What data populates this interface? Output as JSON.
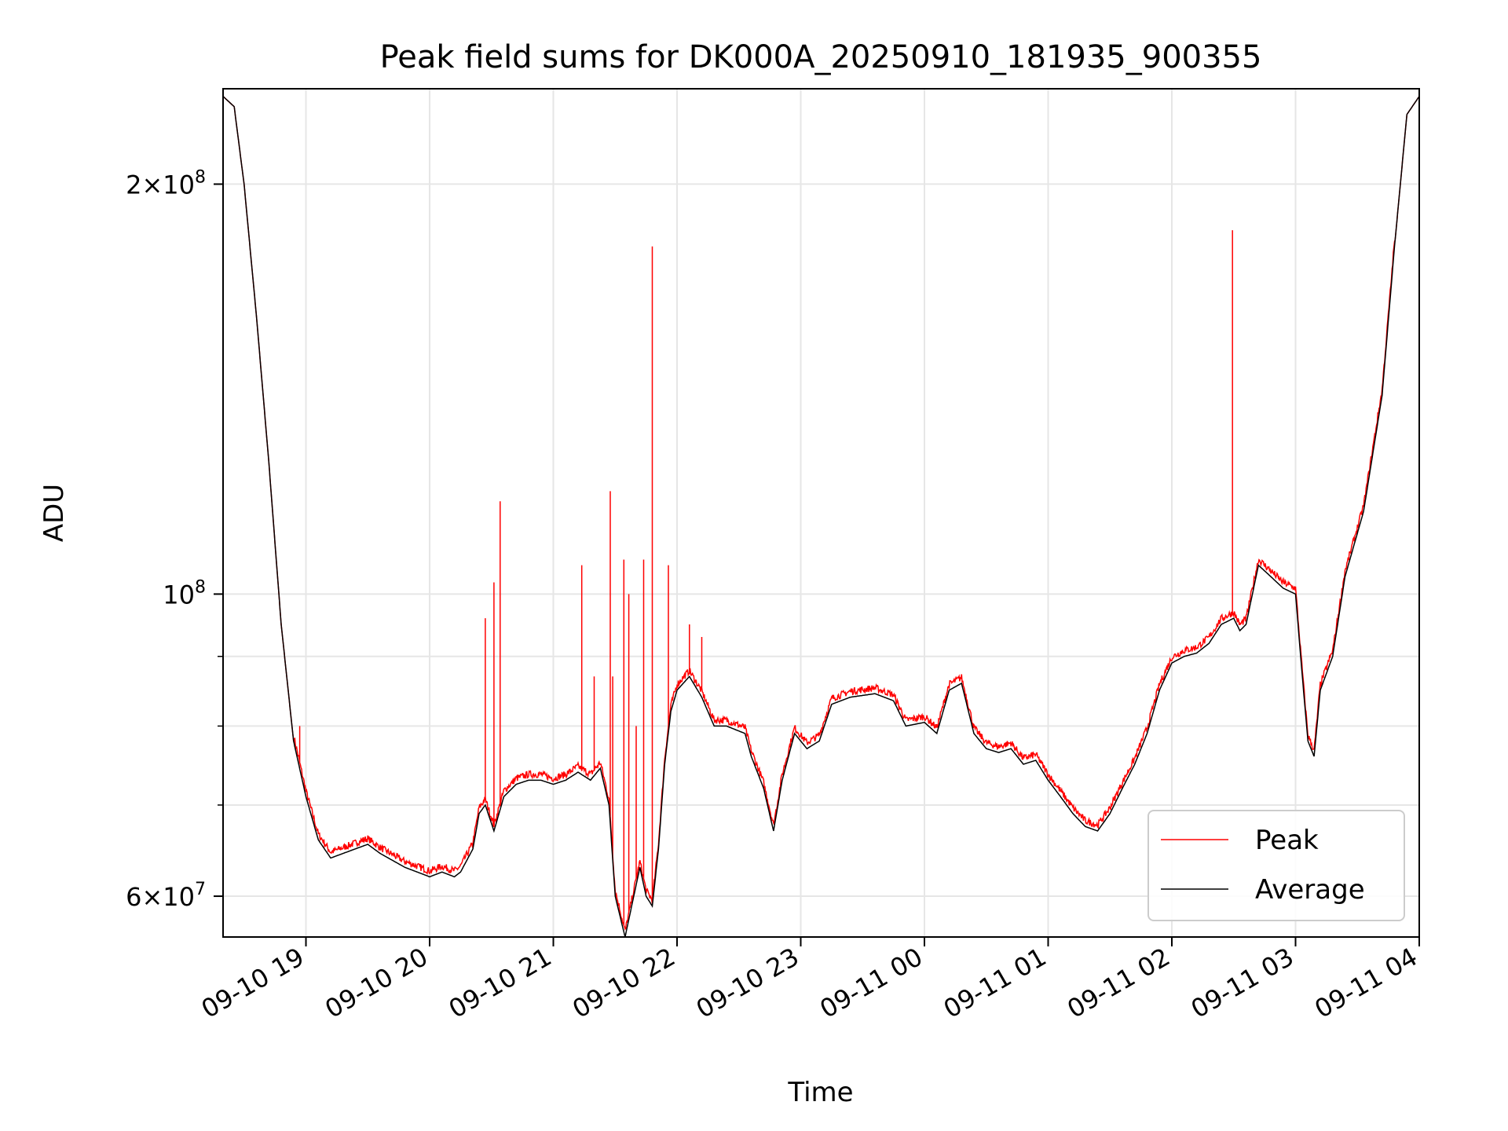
{
  "chart_data": {
    "type": "line",
    "title": "Peak field sums for DK000A_20250910_181935_900355",
    "xlabel": "Time",
    "ylabel": "ADU",
    "yscale": "log",
    "ylim": [
      56000000,
      235000000
    ],
    "xlim_hours": [
      18.33,
      28.0
    ],
    "x_tick_values": [
      19,
      20,
      21,
      22,
      23,
      24,
      25,
      26,
      27,
      28
    ],
    "x_tick_labels": [
      "09-10 19",
      "09-10 20",
      "09-10 21",
      "09-10 22",
      "09-10 23",
      "09-11 00",
      "09-11 01",
      "09-11 02",
      "09-11 03",
      "09-11 04"
    ],
    "y_major_ticks": [
      {
        "value": 60000000,
        "mantissa": "6",
        "exponent": "7"
      },
      {
        "value": 100000000,
        "mantissa": "",
        "exponent": "8"
      },
      {
        "value": 200000000,
        "mantissa": "2",
        "exponent": "8"
      }
    ],
    "y_minor_ticks": [
      70000000,
      80000000,
      90000000
    ],
    "grid": true,
    "legend_position": "lower-right",
    "series": [
      {
        "name": "Peak",
        "color": "#ff0000"
      },
      {
        "name": "Average",
        "color": "#000000"
      }
    ],
    "average_points": [
      [
        18.33,
        232000000
      ],
      [
        18.42,
        228000000
      ],
      [
        18.5,
        200000000
      ],
      [
        18.6,
        160000000
      ],
      [
        18.7,
        125000000
      ],
      [
        18.8,
        95000000
      ],
      [
        18.9,
        78000000
      ],
      [
        19.0,
        71000000
      ],
      [
        19.1,
        66000000
      ],
      [
        19.2,
        64000000
      ],
      [
        19.4,
        65000000
      ],
      [
        19.5,
        65500000
      ],
      [
        19.6,
        64500000
      ],
      [
        19.8,
        63000000
      ],
      [
        19.9,
        62500000
      ],
      [
        20.0,
        62000000
      ],
      [
        20.1,
        62500000
      ],
      [
        20.2,
        62000000
      ],
      [
        20.25,
        62500000
      ],
      [
        20.35,
        65000000
      ],
      [
        20.4,
        69000000
      ],
      [
        20.45,
        70000000
      ],
      [
        20.52,
        67000000
      ],
      [
        20.6,
        71000000
      ],
      [
        20.7,
        72500000
      ],
      [
        20.8,
        73000000
      ],
      [
        20.9,
        73000000
      ],
      [
        21.0,
        72500000
      ],
      [
        21.1,
        73000000
      ],
      [
        21.2,
        74000000
      ],
      [
        21.3,
        73000000
      ],
      [
        21.38,
        74500000
      ],
      [
        21.45,
        70000000
      ],
      [
        21.5,
        60000000
      ],
      [
        21.58,
        56000000
      ],
      [
        21.65,
        60000000
      ],
      [
        21.7,
        63000000
      ],
      [
        21.75,
        60000000
      ],
      [
        21.8,
        59000000
      ],
      [
        21.85,
        65000000
      ],
      [
        21.9,
        75000000
      ],
      [
        21.95,
        82000000
      ],
      [
        22.0,
        85000000
      ],
      [
        22.1,
        87000000
      ],
      [
        22.2,
        84000000
      ],
      [
        22.3,
        80000000
      ],
      [
        22.4,
        80000000
      ],
      [
        22.55,
        79000000
      ],
      [
        22.6,
        76000000
      ],
      [
        22.7,
        72000000
      ],
      [
        22.78,
        67000000
      ],
      [
        22.85,
        73000000
      ],
      [
        22.95,
        79000000
      ],
      [
        23.05,
        77000000
      ],
      [
        23.15,
        78000000
      ],
      [
        23.25,
        83000000
      ],
      [
        23.4,
        84000000
      ],
      [
        23.6,
        84500000
      ],
      [
        23.75,
        83500000
      ],
      [
        23.85,
        80000000
      ],
      [
        24.0,
        80500000
      ],
      [
        24.1,
        79000000
      ],
      [
        24.2,
        85000000
      ],
      [
        24.3,
        86000000
      ],
      [
        24.4,
        79000000
      ],
      [
        24.5,
        77000000
      ],
      [
        24.6,
        76500000
      ],
      [
        24.7,
        77000000
      ],
      [
        24.8,
        75000000
      ],
      [
        24.9,
        75500000
      ],
      [
        25.0,
        73000000
      ],
      [
        25.1,
        71000000
      ],
      [
        25.2,
        69000000
      ],
      [
        25.3,
        67500000
      ],
      [
        25.4,
        67000000
      ],
      [
        25.5,
        69000000
      ],
      [
        25.6,
        72000000
      ],
      [
        25.7,
        75000000
      ],
      [
        25.8,
        79000000
      ],
      [
        25.9,
        85000000
      ],
      [
        26.0,
        89000000
      ],
      [
        26.1,
        90000000
      ],
      [
        26.2,
        90500000
      ],
      [
        26.3,
        92000000
      ],
      [
        26.4,
        95000000
      ],
      [
        26.5,
        96000000
      ],
      [
        26.55,
        94000000
      ],
      [
        26.6,
        95000000
      ],
      [
        26.7,
        105000000
      ],
      [
        26.8,
        103000000
      ],
      [
        26.9,
        101000000
      ],
      [
        27.0,
        100000000
      ],
      [
        27.05,
        88000000
      ],
      [
        27.1,
        78000000
      ],
      [
        27.15,
        76000000
      ],
      [
        27.2,
        85000000
      ],
      [
        27.3,
        90000000
      ],
      [
        27.4,
        103000000
      ],
      [
        27.55,
        115000000
      ],
      [
        27.7,
        140000000
      ],
      [
        27.8,
        180000000
      ],
      [
        27.9,
        225000000
      ],
      [
        28.0,
        232000000
      ]
    ],
    "peak_spikes": [
      [
        18.95,
        80000000
      ],
      [
        20.45,
        96000000
      ],
      [
        20.52,
        102000000
      ],
      [
        20.57,
        117000000
      ],
      [
        21.23,
        105000000
      ],
      [
        21.33,
        87000000
      ],
      [
        21.46,
        119000000
      ],
      [
        21.48,
        87000000
      ],
      [
        21.57,
        106000000
      ],
      [
        21.61,
        100000000
      ],
      [
        21.67,
        80000000
      ],
      [
        21.73,
        106000000
      ],
      [
        21.8,
        180000000
      ],
      [
        21.93,
        105000000
      ],
      [
        22.1,
        95000000
      ],
      [
        22.2,
        93000000
      ],
      [
        26.49,
        185000000
      ]
    ]
  }
}
